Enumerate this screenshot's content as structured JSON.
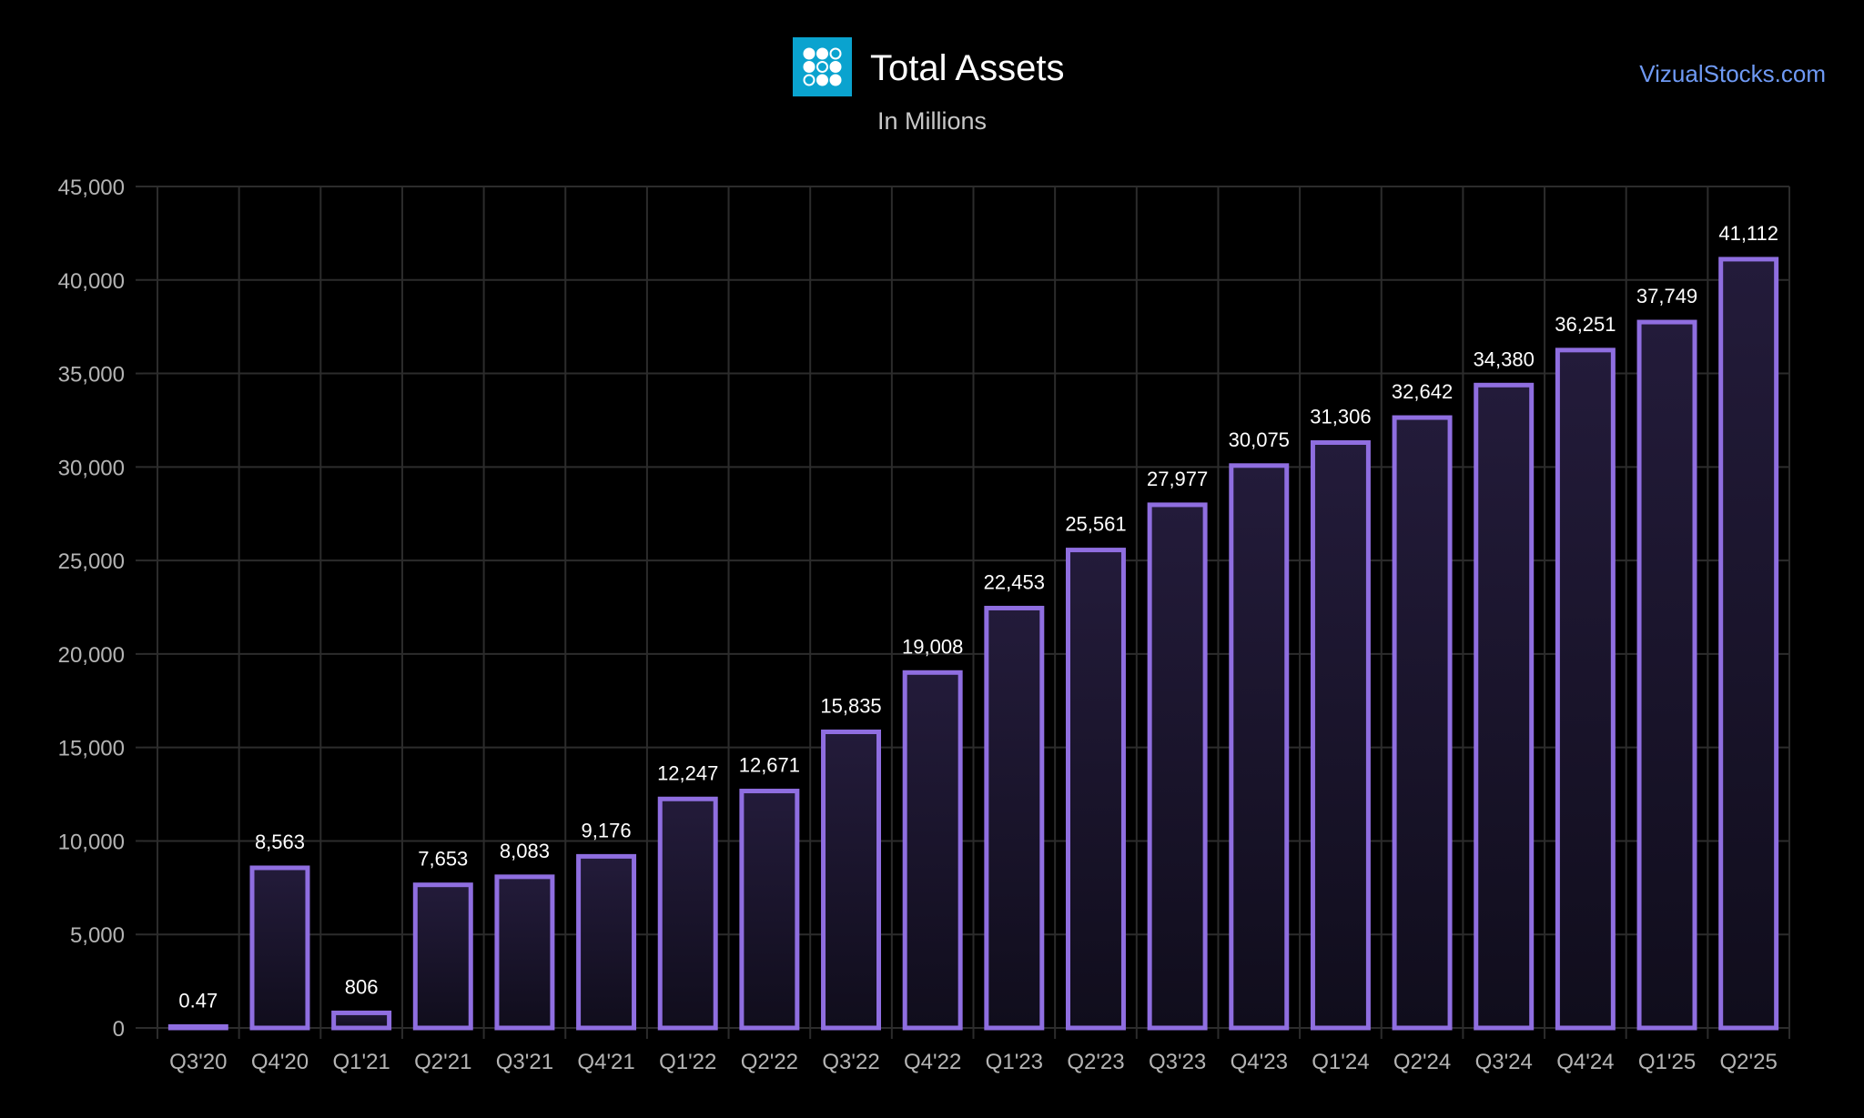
{
  "header": {
    "title": "Total Assets",
    "subtitle": "In Millions",
    "site_link": "VizualStocks.com",
    "logo_icon": "grid-dots-logo-icon"
  },
  "colors": {
    "background": "#000000",
    "bar_stroke": "#8f6ee0",
    "bar_fill_top": "#231b3a",
    "bar_fill_bottom": "#100d1c",
    "grid": "#2c2c2c",
    "axis_text": "#b4b4b4",
    "label_text": "#ffffff",
    "logo_bg": "#0aa3cf",
    "link": "#6f9af5"
  },
  "chart_data": {
    "type": "bar",
    "title": "Total Assets",
    "subtitle": "In Millions",
    "xlabel": "",
    "ylabel": "",
    "ylim": [
      0,
      45000
    ],
    "yticks": [
      0,
      5000,
      10000,
      15000,
      20000,
      25000,
      30000,
      35000,
      40000,
      45000
    ],
    "ytick_labels": [
      "0",
      "5,000",
      "10,000",
      "15,000",
      "20,000",
      "25,000",
      "30,000",
      "35,000",
      "40,000",
      "45,000"
    ],
    "grid": true,
    "categories": [
      "Q3'20",
      "Q4'20",
      "Q1'21",
      "Q2'21",
      "Q3'21",
      "Q4'21",
      "Q1'22",
      "Q2'22",
      "Q3'22",
      "Q4'22",
      "Q1'23",
      "Q2'23",
      "Q3'23",
      "Q4'23",
      "Q1'24",
      "Q2'24",
      "Q3'24",
      "Q4'24",
      "Q1'25",
      "Q2'25"
    ],
    "values": [
      0.47,
      8563,
      806,
      7653,
      8083,
      9176,
      12247,
      12671,
      15835,
      19008,
      22453,
      25561,
      27977,
      30075,
      31306,
      32642,
      34380,
      36251,
      37749,
      41112
    ],
    "data_labels": [
      "0.47",
      "8,563",
      "806",
      "7,653",
      "8,083",
      "9,176",
      "12,247",
      "12,671",
      "15,835",
      "19,008",
      "22,453",
      "25,561",
      "27,977",
      "30,075",
      "31,306",
      "32,642",
      "34,380",
      "36,251",
      "37,749",
      "41,112"
    ]
  }
}
